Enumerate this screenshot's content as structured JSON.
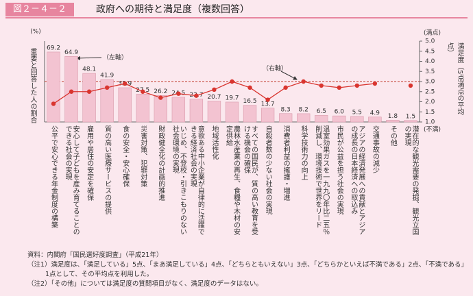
{
  "header": {
    "figure_number": "図２－４－２",
    "title": "政府への期待と満足度（複数回答）"
  },
  "chart_data": {
    "type": "bar_line",
    "y_label": "重要と回答した人の割合",
    "y_unit": "(%)",
    "y2_label": "満足度（5点満点の平均点）",
    "y2_top_label": "(満点)",
    "y2_bottom_label": "(不満)",
    "categories": [
      "公平で安心できる年金制度の構築",
      "安心して子どもを産み育てることのできる社会の実現",
      "雇用や居住の安定を確保",
      "質の高い医療サービスの提供",
      "食の安全・安心確保",
      "災害対策、犯罪対策",
      "財政健全化の計画的推進",
      "いじめ、不登校・引きこもりのない社会環境の実現",
      "意欲ある中小企業が自律的に活躍できる経済社会の実現",
      "地域活性化",
      "農林水産業の再生、食糧や木材の安定供給",
      "すべての国民が、質の高い教育を受ける機会の確保",
      "自殺者数の少ない社会の実現",
      "消費者利益の擁護・増進",
      "科学技術力の向上",
      "温室効果ガスを一九九〇年比二五％削減し、環境技術で世界をリード",
      "市民が公益を担う社会の実現",
      "アジアの経済発展への貢献とアジアの成長の日本経済への取込み",
      "交通事故の減少",
      "その他",
      "潜在的な観光需要の発掘、観光立国の実現"
    ],
    "series": [
      {
        "color": "#f3c3d1",
        "axis": "y",
        "values": [
          69.2,
          64.9,
          48.1,
          41.9,
          33.9,
          27.5,
          26.2,
          24.5,
          22.7,
          20.7,
          19.7,
          16.5,
          13.7,
          8.3,
          8.2,
          6.5,
          6.0,
          5.5,
          4.9,
          1.8,
          1.5
        ],
        "value_labels": [
          "69.2",
          "64.9",
          "48.1",
          "41.9",
          "33.9",
          "27.5",
          "26.2",
          "24.5",
          "22.7",
          "20.7",
          "19.7",
          "16.5",
          "13.7",
          "8.3",
          "8.2",
          "6.5",
          "6.0",
          "5.5",
          "4.9",
          "1.8",
          "1.5"
        ]
      },
      {
        "color": "#d9352f",
        "axis": "y2",
        "values": [
          1.9,
          2.5,
          2.5,
          2.7,
          2.9,
          2.5,
          2.2,
          2.4,
          2.3,
          2.6,
          3.0,
          2.7,
          2.1,
          2.7,
          3.0,
          2.8,
          2.7,
          2.8,
          2.9,
          null,
          2.8
        ]
      }
    ],
    "ylim": [
      0,
      80
    ],
    "y2lim": [
      1,
      5
    ],
    "y2ticks": [
      {
        "value": 5,
        "label": "5.0"
      },
      {
        "value": 4.5,
        "label": "4.5"
      },
      {
        "value": 4,
        "label": "4.0"
      },
      {
        "value": 3.5,
        "label": "3.5"
      },
      {
        "value": 3,
        "label": "3.0"
      },
      {
        "value": 2.5,
        "label": "2.5"
      },
      {
        "value": 2,
        "label": "2.0"
      },
      {
        "value": 1.5,
        "label": "1.5"
      },
      {
        "value": 1,
        "label": "1.0"
      }
    ],
    "y2_reference": 3,
    "reference_color": "#c0392b",
    "annotations": [
      "（左軸）",
      "（右軸）"
    ]
  },
  "notes": [
    "資料：内閣府「国民選好度調査」（平成21年）",
    "（注1）満足度は、「満足している」5点、「まあ満足している」4点、「どちらともいえない」3点、「どちらかといえば不満である」2点、「不満である」",
    "1点として、その平均点を利用した。",
    "（注2）「その他」については満足度の質問項目がなく、満足度のデータはない。"
  ]
}
